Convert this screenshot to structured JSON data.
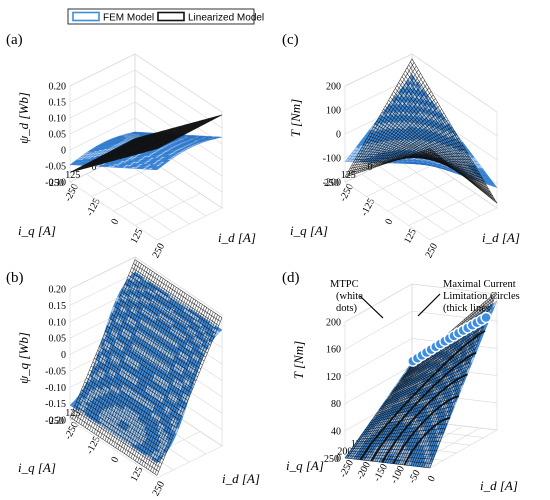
{
  "legend": {
    "entries": [
      {
        "label": "FEM Model",
        "color": "#3d8ee0"
      },
      {
        "label": "Linearized Model",
        "color": "#111111"
      }
    ]
  },
  "colors": {
    "fem": "#3d8ee0",
    "fem_light": "#a9cff5",
    "fem_dark": "#1a5fb4",
    "linear": "#111111",
    "grid": "#d9d9d9"
  },
  "chart_data": [
    {
      "panel": "(a)",
      "type": "surface3d",
      "xlabel": "i_d [A]",
      "ylabel": "i_q [A]",
      "zlabel": "ψ_d [Wb]",
      "x_ticks": [
        "-250",
        "-125",
        "0",
        "125",
        "250"
      ],
      "y_ticks": [
        "-250",
        "-125",
        "0",
        "125",
        "250"
      ],
      "z_ticks": [
        "-0.10",
        "-0.05",
        "0",
        "0.05",
        "0.10",
        "0.15",
        "0.20"
      ],
      "xlim": [
        -250,
        250
      ],
      "ylim": [
        -250,
        250
      ],
      "zlim": [
        -0.12,
        0.22
      ],
      "series": [
        {
          "name": "FEM Model"
        },
        {
          "name": "Linearized Model"
        }
      ]
    },
    {
      "panel": "(c)",
      "type": "surface3d",
      "xlabel": "i_d [A]",
      "ylabel": "i_q [A]",
      "zlabel": "T [Nm]",
      "x_ticks": [
        "-250",
        "-125",
        "0",
        "125",
        "250"
      ],
      "y_ticks": [
        "-250",
        "-125",
        "0",
        "125",
        "250"
      ],
      "z_ticks": [
        "-200",
        "-100",
        "0",
        "100",
        "200"
      ],
      "xlim": [
        -250,
        250
      ],
      "ylim": [
        -250,
        250
      ],
      "zlim": [
        -220,
        220
      ],
      "series": [
        {
          "name": "FEM Model"
        },
        {
          "name": "Linearized Model"
        }
      ]
    },
    {
      "panel": "(b)",
      "type": "surface3d",
      "xlabel": "i_d [A]",
      "ylabel": "i_q [A]",
      "zlabel": "ψ_q [Wb]",
      "x_ticks": [
        "-250",
        "-125",
        "0",
        "125",
        "250"
      ],
      "y_ticks": [
        "-250",
        "-125",
        "0",
        "125",
        "250"
      ],
      "z_ticks": [
        "-0.20",
        "-0.15",
        "-0.10",
        "-0.05",
        "0",
        "0.05",
        "0.10",
        "0.15",
        "0.20"
      ],
      "xlim": [
        -250,
        250
      ],
      "ylim": [
        -250,
        250
      ],
      "zlim": [
        -0.22,
        0.22
      ],
      "series": [
        {
          "name": "FEM Model"
        },
        {
          "name": "Linearized Model"
        }
      ]
    },
    {
      "panel": "(d)",
      "type": "surface3d",
      "xlabel": "i_d [A]",
      "ylabel": "i_q [A]",
      "zlabel": "T [Nm]",
      "x_ticks": [
        "-250",
        "-200",
        "-150",
        "-100",
        "-50",
        "0"
      ],
      "y_ticks": [
        "0",
        "50",
        "100",
        "150",
        "200",
        "250"
      ],
      "z_ticks": [
        "0",
        "40",
        "80",
        "120",
        "160",
        "200"
      ],
      "xlim": [
        -250,
        0
      ],
      "ylim": [
        0,
        250
      ],
      "zlim": [
        0,
        200
      ],
      "annotations": [
        "MTPC",
        "(white",
        "dots)",
        "Maximal Current",
        "Limitation Circles",
        "(thick lines)"
      ],
      "series": [
        {
          "name": "FEM Model"
        },
        {
          "name": "Linearized Model"
        }
      ]
    }
  ]
}
